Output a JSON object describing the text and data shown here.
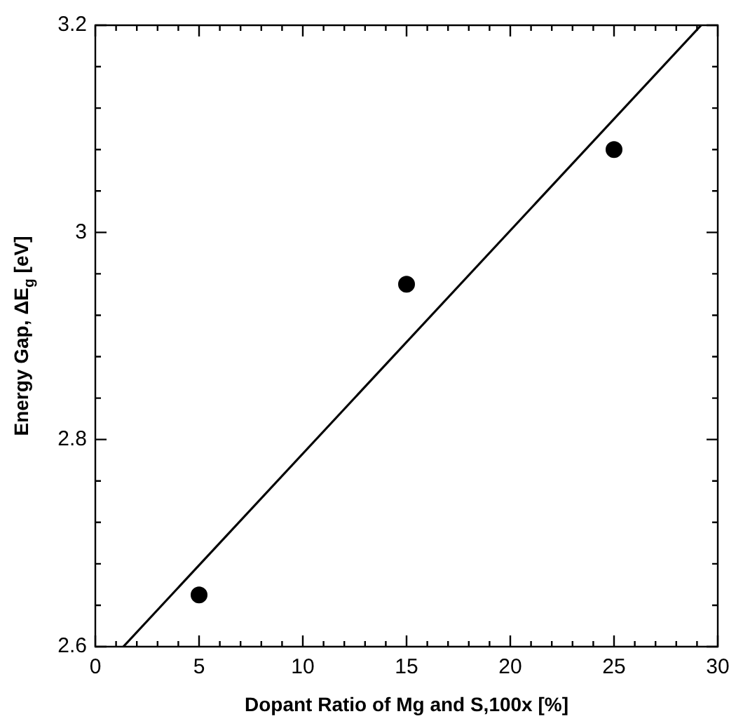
{
  "chart_data": {
    "type": "scatter",
    "xlabel": "Dopant Ratio of Mg and S,100x [%]",
    "ylabel": "Energy Gap, ΔE$_{g}$ [eV]",
    "x": [
      5,
      15,
      25
    ],
    "series": [
      {
        "color": "#000000",
        "marker": "circle",
        "values": [
          2.65,
          2.95,
          3.08
        ]
      },
      {
        "type": "line",
        "color": "#000000",
        "marker": "none",
        "line_style": "solid",
        "x": [
          1.35,
          29.2
        ],
        "values": [
          2.6,
          3.2
        ]
      }
    ],
    "grid": false,
    "legend": false,
    "xlim": [
      0,
      30
    ],
    "ylim": [
      2.6,
      3.2
    ],
    "xticks": [
      0,
      {
        "value": 1,
        "label": null
      },
      {
        "value": 2,
        "label": null
      },
      {
        "value": 3,
        "label": null
      },
      {
        "value": 4,
        "label": null
      },
      5,
      {
        "value": 6,
        "label": null
      },
      {
        "value": 7,
        "label": null
      },
      {
        "value": 8,
        "label": null
      },
      {
        "value": 9,
        "label": null
      },
      10,
      {
        "value": 11,
        "label": null
      },
      {
        "value": 12,
        "label": null
      },
      {
        "value": 13,
        "label": null
      },
      {
        "value": 14,
        "label": null
      },
      15,
      {
        "value": 16,
        "label": null
      },
      {
        "value": 17,
        "label": null
      },
      {
        "value": 18,
        "label": null
      },
      {
        "value": 19,
        "label": null
      },
      20,
      {
        "value": 21,
        "label": null
      },
      {
        "value": 22,
        "label": null
      },
      {
        "value": 23,
        "label": null
      },
      {
        "value": 24,
        "label": null
      },
      25,
      {
        "value": 26,
        "label": null
      },
      {
        "value": 27,
        "label": null
      },
      {
        "value": 28,
        "label": null
      },
      {
        "value": 29,
        "label": null
      },
      30
    ],
    "yticks": [
      2.6,
      {
        "value": 2.64,
        "label": null
      },
      {
        "value": 2.68,
        "label": null
      },
      {
        "value": 2.72,
        "label": null
      },
      {
        "value": 2.76,
        "label": null
      },
      2.8,
      {
        "value": 2.84,
        "label": null
      },
      {
        "value": 2.88,
        "label": null
      },
      {
        "value": 2.92,
        "label": null
      },
      {
        "value": 2.96,
        "label": null
      },
      3,
      {
        "value": 3.04,
        "label": null
      },
      {
        "value": 3.08,
        "label": null
      },
      {
        "value": 3.12,
        "label": null
      },
      {
        "value": 3.16,
        "label": null
      },
      3.2
    ]
  }
}
